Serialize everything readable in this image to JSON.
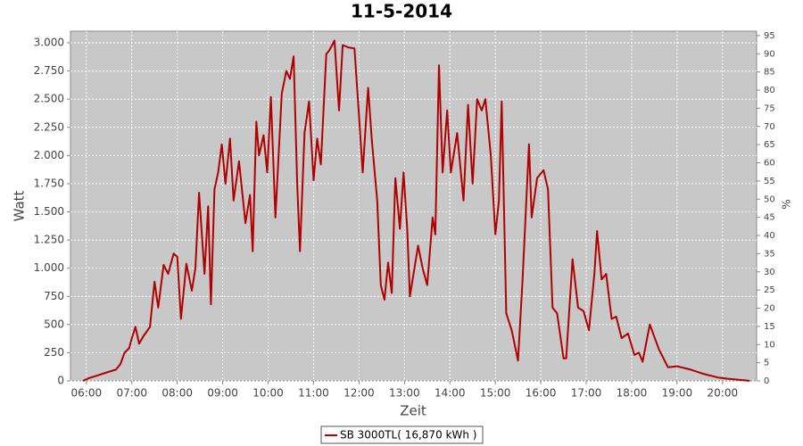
{
  "chart_data": {
    "type": "line",
    "title": "11-5-2014",
    "x_label": "Zeit",
    "y_label": "Watt",
    "y2_label": "%",
    "x": [
      5.92,
      6.06,
      6.26,
      6.45,
      6.65,
      6.75,
      6.84,
      6.94,
      7.0,
      7.08,
      7.16,
      7.26,
      7.4,
      7.5,
      7.58,
      7.7,
      7.8,
      7.92,
      8.0,
      8.08,
      8.2,
      8.32,
      8.4,
      8.48,
      8.6,
      8.68,
      8.74,
      8.82,
      8.9,
      8.98,
      9.06,
      9.16,
      9.24,
      9.36,
      9.5,
      9.6,
      9.66,
      9.74,
      9.8,
      9.9,
      9.98,
      10.06,
      10.16,
      10.3,
      10.4,
      10.48,
      10.56,
      10.64,
      10.7,
      10.8,
      10.9,
      11.0,
      11.08,
      11.16,
      11.28,
      11.34,
      11.46,
      11.56,
      11.64,
      11.76,
      11.9,
      12.0,
      12.08,
      12.2,
      12.28,
      12.4,
      12.48,
      12.56,
      12.64,
      12.72,
      12.8,
      12.9,
      12.98,
      13.06,
      13.12,
      13.2,
      13.3,
      13.4,
      13.5,
      13.62,
      13.68,
      13.76,
      13.84,
      13.94,
      14.02,
      14.16,
      14.3,
      14.4,
      14.5,
      14.6,
      14.7,
      14.78,
      14.9,
      15.0,
      15.08,
      15.14,
      15.24,
      15.36,
      15.5,
      15.6,
      15.74,
      15.8,
      15.92,
      16.06,
      16.16,
      16.26,
      16.36,
      16.5,
      16.56,
      16.7,
      16.82,
      16.94,
      17.06,
      17.18,
      17.24,
      17.34,
      17.44,
      17.56,
      17.66,
      17.78,
      17.92,
      18.06,
      18.16,
      18.24,
      18.4,
      18.6,
      18.8,
      19.0,
      19.3,
      19.6,
      19.9,
      20.1,
      20.35,
      20.5,
      20.6
    ],
    "series": [
      {
        "name": "SB 3000TL( 16,870 kWh )",
        "color": "#b00000",
        "values": [
          0,
          25,
          50,
          75,
          100,
          150,
          250,
          290,
          380,
          480,
          330,
          400,
          480,
          880,
          650,
          1030,
          950,
          1130,
          1100,
          550,
          1040,
          800,
          1000,
          1670,
          950,
          1550,
          680,
          1700,
          1850,
          2100,
          1750,
          2150,
          1600,
          1950,
          1400,
          1650,
          1150,
          2300,
          2000,
          2180,
          1850,
          2520,
          1450,
          2550,
          2750,
          2680,
          2880,
          1750,
          1150,
          2200,
          2480,
          1780,
          2150,
          1920,
          2900,
          2930,
          3020,
          2400,
          2980,
          2960,
          2950,
          2350,
          1850,
          2600,
          2150,
          1600,
          850,
          720,
          1050,
          780,
          1800,
          1350,
          1850,
          1350,
          750,
          950,
          1200,
          1000,
          850,
          1450,
          1300,
          2800,
          1850,
          2400,
          1850,
          2200,
          1600,
          2450,
          1750,
          2500,
          2400,
          2500,
          2000,
          1300,
          1600,
          2480,
          600,
          450,
          180,
          900,
          2100,
          1450,
          1800,
          1870,
          1700,
          650,
          600,
          200,
          200,
          1080,
          650,
          620,
          450,
          950,
          1330,
          900,
          950,
          550,
          570,
          380,
          420,
          230,
          250,
          170,
          500,
          280,
          120,
          130,
          100,
          60,
          30,
          20,
          10,
          5,
          0
        ]
      }
    ],
    "xlim": [
      5.65,
      20.75
    ],
    "xticks": [
      {
        "value": 6,
        "label": "06:00"
      },
      {
        "value": 7,
        "label": "07:00"
      },
      {
        "value": 8,
        "label": "08:00"
      },
      {
        "value": 9,
        "label": "09:00"
      },
      {
        "value": 10,
        "label": "10:00"
      },
      {
        "value": 11,
        "label": "11:00"
      },
      {
        "value": 12,
        "label": "12:00"
      },
      {
        "value": 13,
        "label": "13:00"
      },
      {
        "value": 14,
        "label": "14:00"
      },
      {
        "value": 15,
        "label": "15:00"
      },
      {
        "value": 16,
        "label": "16:00"
      },
      {
        "value": 17,
        "label": "17:00"
      },
      {
        "value": 18,
        "label": "18:00"
      },
      {
        "value": 19,
        "label": "19:00"
      },
      {
        "value": 20,
        "label": "20:00"
      }
    ],
    "ylim": [
      0,
      3103
    ],
    "yticks": [
      0,
      250,
      500,
      750,
      {
        "value": 1000,
        "label": "1.000"
      },
      {
        "value": 1250,
        "label": "1.250"
      },
      {
        "value": 1500,
        "label": "1.500"
      },
      {
        "value": 1750,
        "label": "1.750"
      },
      {
        "value": 2000,
        "label": "2.000"
      },
      {
        "value": 2250,
        "label": "2.250"
      },
      {
        "value": 2500,
        "label": "2.500"
      },
      {
        "value": 2750,
        "label": "2.750"
      },
      {
        "value": 3000,
        "label": "3.000"
      }
    ],
    "y2lim": [
      0,
      96.2
    ],
    "y2ticks": [
      0,
      5,
      10,
      15,
      20,
      25,
      30,
      35,
      40,
      45,
      50,
      55,
      60,
      65,
      70,
      75,
      80,
      85,
      90,
      95
    ],
    "grid": true
  }
}
